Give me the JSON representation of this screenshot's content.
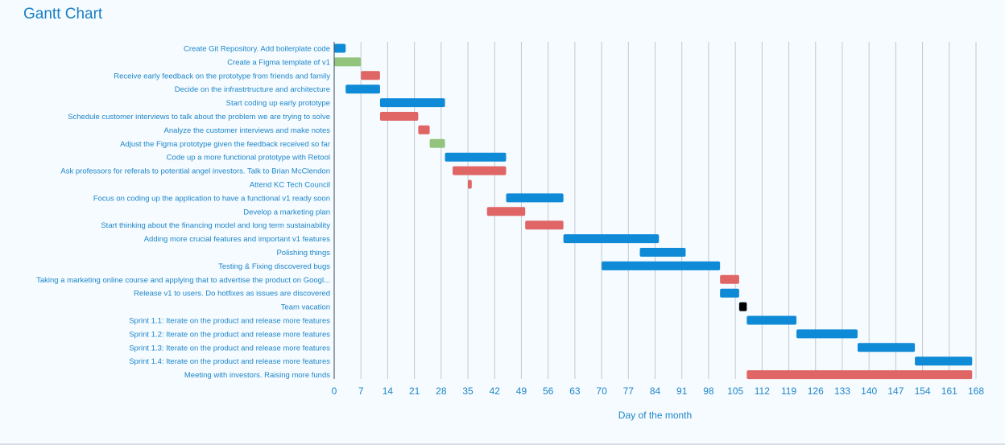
{
  "chart_data": {
    "type": "gantt",
    "title": "Gantt Chart",
    "xlabel": "Day of the month",
    "ylabel": "",
    "xlim": [
      0,
      168
    ],
    "ticks": [
      0,
      7,
      14,
      21,
      28,
      35,
      42,
      49,
      56,
      63,
      70,
      77,
      84,
      91,
      98,
      105,
      112,
      119,
      126,
      133,
      140,
      147,
      154,
      161,
      168
    ],
    "grid": true,
    "colors": {
      "blue": "#0f8ad6",
      "red": "#e06666",
      "green": "#93c47d",
      "black": "#000000"
    },
    "tasks": [
      {
        "name": "Create Git Repository. Add boilerplate code",
        "start": 0,
        "end": 3,
        "color": "blue"
      },
      {
        "name": "Create a Figma template of v1",
        "start": 0,
        "end": 7,
        "color": "green"
      },
      {
        "name": "Receive early feedback on the prototype from friends and family",
        "start": 7,
        "end": 12,
        "color": "red"
      },
      {
        "name": "Decide on the infrastrtructure and architecture",
        "start": 3,
        "end": 12,
        "color": "blue"
      },
      {
        "name": "Start coding up early prototype",
        "start": 12,
        "end": 29,
        "color": "blue"
      },
      {
        "name": "Schedule customer interviews to talk about the problem we are trying to solve",
        "start": 12,
        "end": 22,
        "color": "red"
      },
      {
        "name": "Analyze the customer interviews and make notes",
        "start": 22,
        "end": 25,
        "color": "red"
      },
      {
        "name": "Adjust the Figma prototype given the feedback received so far",
        "start": 25,
        "end": 29,
        "color": "green"
      },
      {
        "name": "Code up a more functional prototype with Retool",
        "start": 29,
        "end": 45,
        "color": "blue"
      },
      {
        "name": "Ask professors for referals to potential angel investors. Talk to Brian McClendon",
        "start": 31,
        "end": 45,
        "color": "red"
      },
      {
        "name": "Attend KC Tech Council",
        "start": 35,
        "end": 36,
        "color": "red"
      },
      {
        "name": "Focus on coding up the application to have a functional v1 ready soon",
        "start": 45,
        "end": 60,
        "color": "blue"
      },
      {
        "name": "Develop a marketing plan",
        "start": 40,
        "end": 50,
        "color": "red"
      },
      {
        "name": "Start thinking about the financing model and long term sustainability",
        "start": 50,
        "end": 60,
        "color": "red"
      },
      {
        "name": "Adding more crucial features and important v1 features",
        "start": 60,
        "end": 85,
        "color": "blue"
      },
      {
        "name": "Polishing things",
        "start": 80,
        "end": 92,
        "color": "blue"
      },
      {
        "name": "Testing & Fixing discovered bugs",
        "start": 70,
        "end": 101,
        "color": "blue"
      },
      {
        "name": "Taking a marketing online course and applying that to advertise the product on Googl...",
        "start": 101,
        "end": 106,
        "color": "red"
      },
      {
        "name": "Release v1 to users. Do hotfixes as issues are discovered",
        "start": 101,
        "end": 106,
        "color": "blue"
      },
      {
        "name": "Team vacation",
        "start": 106,
        "end": 108,
        "color": "black"
      },
      {
        "name": "Sprint 1.1: Iterate on the product and release more features",
        "start": 108,
        "end": 121,
        "color": "blue"
      },
      {
        "name": "Sprint 1.2: Iterate on the product and release more features",
        "start": 121,
        "end": 137,
        "color": "blue"
      },
      {
        "name": "Sprint 1.3: Iterate on the product and release more features",
        "start": 137,
        "end": 152,
        "color": "blue"
      },
      {
        "name": "Sprint 1.4: Iterate on the product and release more features",
        "start": 152,
        "end": 167,
        "color": "blue"
      },
      {
        "name": "Meeting with investors. Raising more funds",
        "start": 108,
        "end": 167,
        "color": "red"
      }
    ]
  }
}
